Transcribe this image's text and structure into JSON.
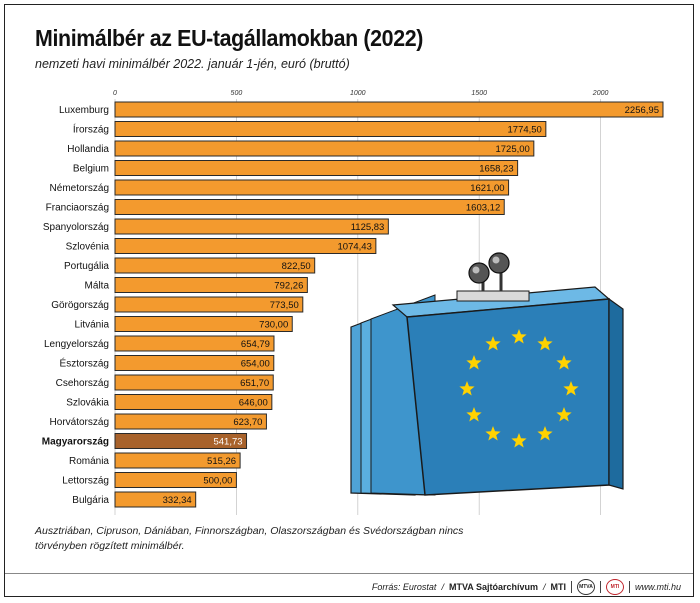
{
  "header": {
    "title": "Minimálbér az EU-tagállamokban (2022)",
    "subtitle": "nemzeti havi minimálbér 2022. január 1-jén, euró (bruttó)"
  },
  "chart_data": {
    "type": "bar",
    "orientation": "horizontal",
    "title": "Minimálbér az EU-tagállamokban (2022)",
    "subtitle": "nemzeti havi minimálbér 2022. január 1-jén, euró (bruttó)",
    "xlim": [
      0,
      2300
    ],
    "ticks": [
      0,
      500,
      1000,
      1500,
      2000
    ],
    "tick_labels": [
      "0",
      "500",
      "1000",
      "1500",
      "2000"
    ],
    "categories": [
      "Luxemburg",
      "Írország",
      "Hollandia",
      "Belgium",
      "Németország",
      "Franciaország",
      "Spanyolország",
      "Szlovénia",
      "Portugália",
      "Málta",
      "Görögország",
      "Litvánia",
      "Lengyelország",
      "Észtország",
      "Csehország",
      "Szlovákia",
      "Horvátország",
      "Magyarország",
      "Románia",
      "Lettország",
      "Bulgária"
    ],
    "values": [
      2256.95,
      1774.5,
      1725.0,
      1658.23,
      1621.0,
      1603.12,
      1125.83,
      1074.43,
      822.5,
      792.26,
      773.5,
      730.0,
      654.79,
      654.0,
      651.7,
      646.0,
      623.7,
      541.73,
      515.26,
      500.0,
      332.34
    ],
    "value_labels": [
      "2256,95",
      "1774,50",
      "1725,00",
      "1658,23",
      "1621,00",
      "1603,12",
      "1125,83",
      "1074,43",
      "822,50",
      "792,26",
      "773,50",
      "730,00",
      "654,79",
      "654,00",
      "651,70",
      "646,00",
      "623,70",
      "541,73",
      "515,26",
      "500,00",
      "332,34"
    ],
    "highlight": "Magyarország",
    "colors": {
      "bar": "#F39A2E",
      "highlight": "#A8622B",
      "outline": "#2a2a2a",
      "grid": "#c8c8c8"
    }
  },
  "footnote": "Ausztriában, Cipruson, Dániában, Finnországban, Olaszországban és Svédországban nincs törvényben rögzített minimálbér.",
  "credits": {
    "source_prefix": "Forrás: Eurostat",
    "agency": "MTVA Sajtóarchívum",
    "mti": "MTI",
    "website": "www.mti.hu",
    "logo1": "MTVA",
    "logo2": "MTI"
  },
  "illustration": {
    "wallet_color": "#2B7FB8",
    "star_color": "#FFD200",
    "clasp_icon": "purse-clasp-icon",
    "icon": "eu-wallet-icon"
  }
}
